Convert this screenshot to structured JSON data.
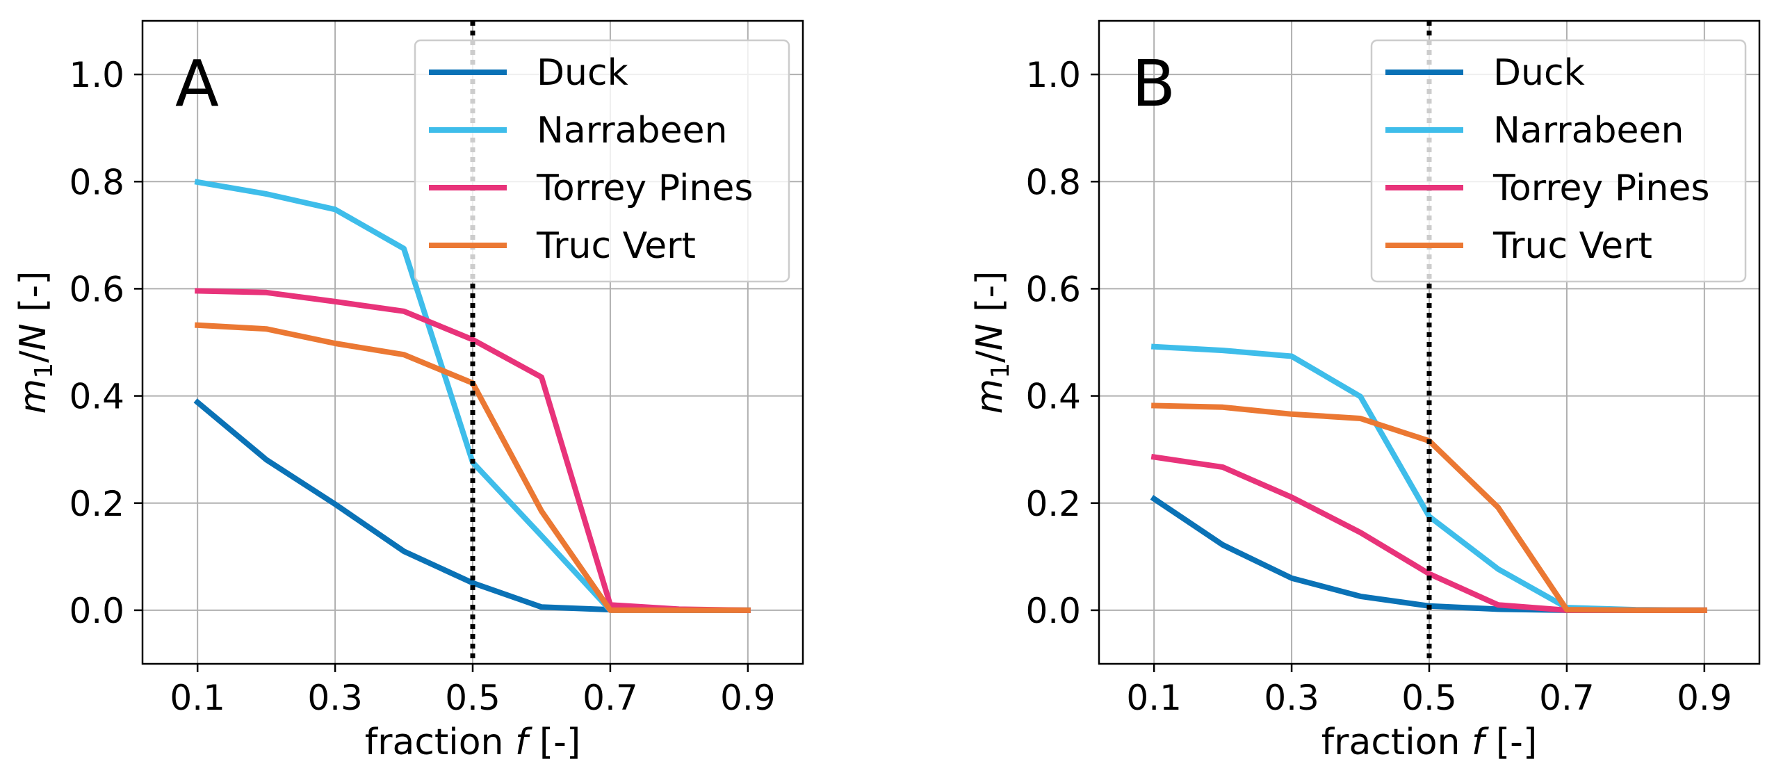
{
  "chart_data": [
    {
      "type": "line",
      "panel_label": "A",
      "xlabel_main": "fraction ",
      "xlabel_italic": "f",
      "xlabel_unit": " [-]",
      "ylabel_m": "m",
      "ylabel_sub": "1",
      "ylabel_slash": "/",
      "ylabel_n": "N",
      "ylabel_unit": " [-]",
      "xlim": [
        0.02,
        0.98
      ],
      "ylim": [
        -0.1,
        1.1
      ],
      "xticks": [
        "0.1",
        "0.3",
        "0.5",
        "0.7",
        "0.9"
      ],
      "yticks": [
        "0.0",
        "0.2",
        "0.4",
        "0.6",
        "0.8",
        "1.0"
      ],
      "grid": true,
      "legend_position": "top-right",
      "vline": 0.5,
      "x": [
        0.1,
        0.2,
        0.3,
        0.4,
        0.5,
        0.6,
        0.7,
        0.8,
        0.9
      ],
      "series": [
        {
          "name": "Duck",
          "color": "#0a72b6",
          "values": [
            0.388,
            0.281,
            0.198,
            0.11,
            0.051,
            0.006,
            0.001,
            0.0,
            0.0
          ]
        },
        {
          "name": "Narrabeen",
          "color": "#3ebdea",
          "values": [
            0.799,
            0.777,
            0.748,
            0.675,
            0.276,
            0.139,
            0.0,
            0.0,
            0.0
          ]
        },
        {
          "name": "Torrey Pines",
          "color": "#e8337a",
          "values": [
            0.596,
            0.593,
            0.576,
            0.558,
            0.505,
            0.435,
            0.01,
            0.002,
            0.0
          ]
        },
        {
          "name": "Truc Vert",
          "color": "#eb7833",
          "values": [
            0.532,
            0.525,
            0.498,
            0.477,
            0.424,
            0.185,
            0.0,
            0.0,
            0.0
          ]
        }
      ]
    },
    {
      "type": "line",
      "panel_label": "B",
      "xlabel_main": "fraction ",
      "xlabel_italic": "f",
      "xlabel_unit": " [-]",
      "ylabel_m": "m",
      "ylabel_sub": "1",
      "ylabel_slash": "/",
      "ylabel_n": "N",
      "ylabel_unit": " [-]",
      "xlim": [
        0.02,
        0.98
      ],
      "ylim": [
        -0.1,
        1.1
      ],
      "xticks": [
        "0.1",
        "0.3",
        "0.5",
        "0.7",
        "0.9"
      ],
      "yticks": [
        "0.0",
        "0.2",
        "0.4",
        "0.6",
        "0.8",
        "1.0"
      ],
      "grid": true,
      "legend_position": "top-right",
      "vline": 0.5,
      "x": [
        0.1,
        0.2,
        0.3,
        0.4,
        0.5,
        0.6,
        0.7,
        0.8,
        0.9
      ],
      "series": [
        {
          "name": "Duck",
          "color": "#0a72b6",
          "values": [
            0.208,
            0.122,
            0.06,
            0.026,
            0.008,
            0.002,
            0.0,
            0.0,
            0.0
          ]
        },
        {
          "name": "Narrabeen",
          "color": "#3ebdea",
          "values": [
            0.492,
            0.485,
            0.474,
            0.399,
            0.175,
            0.077,
            0.005,
            0.001,
            0.0
          ]
        },
        {
          "name": "Torrey Pines",
          "color": "#e8337a",
          "values": [
            0.286,
            0.267,
            0.211,
            0.145,
            0.068,
            0.01,
            0.0,
            0.0,
            0.0
          ]
        },
        {
          "name": "Truc Vert",
          "color": "#eb7833",
          "values": [
            0.382,
            0.379,
            0.366,
            0.358,
            0.316,
            0.192,
            0.001,
            0.0,
            0.0
          ]
        }
      ]
    }
  ]
}
